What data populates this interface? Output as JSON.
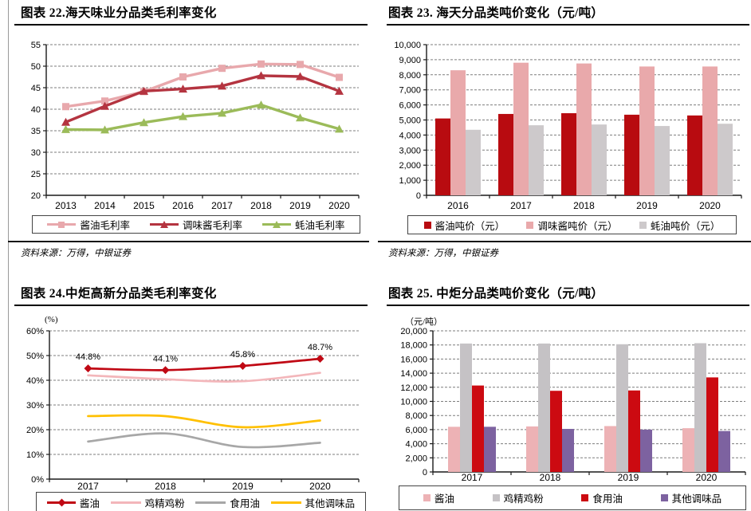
{
  "page": {
    "source_label": "资料来源：万得，中银证券"
  },
  "chart_data": [
    {
      "id": "fig22",
      "type": "line",
      "title": "图表 22.海天味业分品类毛利率变化",
      "categories": [
        "2013",
        "2014",
        "2015",
        "2016",
        "2017",
        "2018",
        "2019",
        "2020"
      ],
      "ylim": [
        20,
        55
      ],
      "ystep": 5,
      "ytick_format": "plain",
      "grid": "dashed-horizontal",
      "legend_position": "bottom-box",
      "smooth": false,
      "series": [
        {
          "name": "酱油毛利率",
          "color": "#E8A8AC",
          "marker": "square",
          "swatch": "line-square",
          "values": [
            40.6,
            41.9,
            44.1,
            47.5,
            49.5,
            50.5,
            50.4,
            47.4
          ]
        },
        {
          "name": "调味酱毛利率",
          "color": "#B43440",
          "marker": "triangle",
          "swatch": "line-triangle",
          "values": [
            37.0,
            40.7,
            44.2,
            44.7,
            45.4,
            47.8,
            47.6,
            44.2
          ]
        },
        {
          "name": "蚝油毛利率",
          "color": "#9BBB59",
          "marker": "triangle",
          "swatch": "line-triangle",
          "values": [
            35.3,
            35.2,
            36.9,
            38.3,
            39.1,
            41.0,
            38.0,
            35.4
          ]
        }
      ],
      "source": "资料来源：万得，中银证券"
    },
    {
      "id": "fig23",
      "type": "bar",
      "title": "图表 23. 海天分品类吨价变化（元/吨）",
      "categories": [
        "2016",
        "2017",
        "2018",
        "2019",
        "2020"
      ],
      "ylim": [
        0,
        10000
      ],
      "ystep": 1000,
      "ytick_format": "thousands",
      "grid": "dashed-horizontal",
      "legend_position": "bottom-box",
      "series": [
        {
          "name": "酱油吨价（元）",
          "color": "#B80B10",
          "swatch": "square",
          "values": [
            5100,
            5400,
            5450,
            5350,
            5300
          ]
        },
        {
          "name": "调味酱吨价（元）",
          "color": "#E9A9AB",
          "swatch": "square",
          "values": [
            8300,
            8800,
            8750,
            8550,
            8550
          ]
        },
        {
          "name": "蚝油吨价（元）",
          "color": "#CDC9CB",
          "swatch": "square",
          "values": [
            4350,
            4650,
            4700,
            4600,
            4750
          ]
        }
      ],
      "source": "资料来源：万得，中银证券"
    },
    {
      "id": "fig24",
      "type": "line",
      "title": "图表 24.中炬高新分品类毛利率变化",
      "axis_unit": "(%)",
      "categories": [
        "2017",
        "2018",
        "2019",
        "2020"
      ],
      "ylim": [
        0,
        60
      ],
      "ystep": 10,
      "ytick_format": "percent",
      "grid": "dashed-horizontal",
      "legend_position": "bottom-box",
      "smooth": true,
      "series": [
        {
          "name": "酱油",
          "color": "#C00814",
          "marker": "diamond",
          "swatch": "line-diamond",
          "values": [
            44.8,
            44.1,
            45.8,
            48.7
          ],
          "labels": [
            "44.8%",
            "44.1%",
            "45.8%",
            "48.7%"
          ]
        },
        {
          "name": "鸡精鸡粉",
          "color": "#F3B6BA",
          "marker": null,
          "swatch": "line",
          "values": [
            42.0,
            40.4,
            39.6,
            43.0
          ]
        },
        {
          "name": "食用油",
          "color": "#A7A7A7",
          "marker": null,
          "swatch": "line",
          "values": [
            15.2,
            18.5,
            13.0,
            14.7
          ]
        },
        {
          "name": "其他调味品",
          "color": "#FFC000",
          "marker": null,
          "swatch": "line",
          "values": [
            25.5,
            25.5,
            21.0,
            23.7
          ]
        }
      ]
    },
    {
      "id": "fig25",
      "type": "bar",
      "title": "图表 25. 中炬分品类吨价变化（元/吨）",
      "axis_unit": "（元/吨）",
      "categories": [
        "2017",
        "2018",
        "2019",
        "2020"
      ],
      "ylim": [
        0,
        20000
      ],
      "ystep": 2000,
      "ytick_format": "thousands",
      "grid": "dashed-horizontal",
      "legend_position": "bottom-box",
      "series": [
        {
          "name": "酱油",
          "color": "#EDB2B5",
          "swatch": "square",
          "values": [
            6400,
            6450,
            6500,
            6200
          ]
        },
        {
          "name": "鸡精鸡粉",
          "color": "#C5C2C5",
          "swatch": "square",
          "values": [
            18200,
            18200,
            18100,
            18250
          ]
        },
        {
          "name": "食用油",
          "color": "#CC0A11",
          "swatch": "square",
          "values": [
            12250,
            11500,
            11550,
            13400
          ]
        },
        {
          "name": "其他调味品",
          "color": "#7D62A0",
          "swatch": "square",
          "values": [
            6400,
            6100,
            6000,
            5800
          ]
        }
      ]
    }
  ]
}
